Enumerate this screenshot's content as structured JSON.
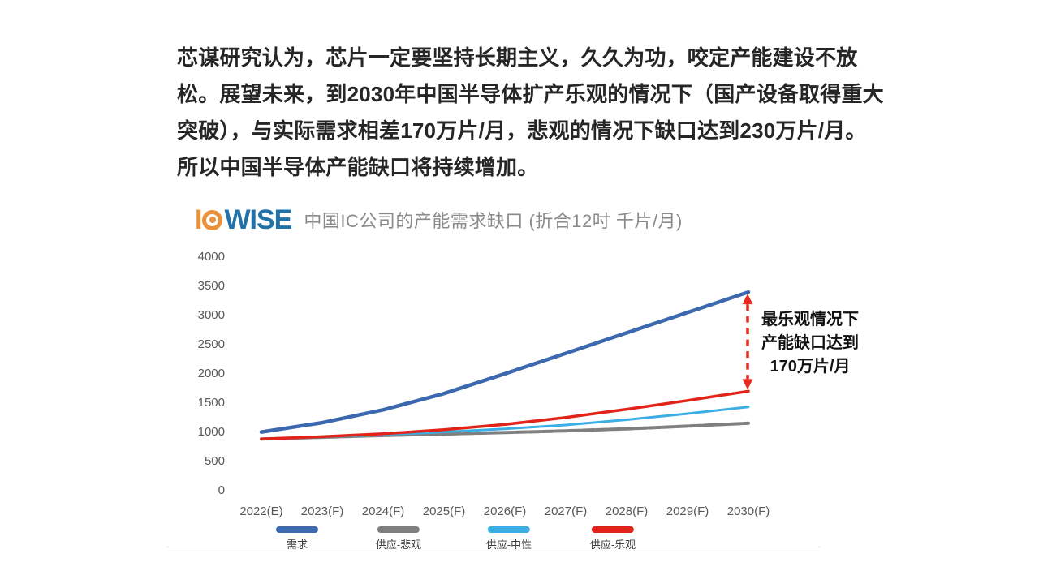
{
  "intro": {
    "lines": [
      "芯谋研究认为，芯片一定要坚持长期主义，久久为功，咬定产能建设不放",
      "松。展望未来，到2030年中国半导体扩产乐观的情况下（国产设备取得重大",
      "突破），与实际需求相差170万片/月，悲观的情况下缺口达到230万片/月。",
      "所以中国半导体产能缺口将持续增加。"
    ]
  },
  "logo": {
    "part1": "I",
    "part2": "WISE",
    "orange": "#E8923C",
    "blue": "#2272A8"
  },
  "chart_data": {
    "type": "line",
    "title": "中国IC公司的产能需求缺口 (折合12吋 千片/月)",
    "x_labels": [
      "2022(E)",
      "2023(F)",
      "2024(F)",
      "2025(F)",
      "2026(F)",
      "2027(F)",
      "2028(F)",
      "2029(F)",
      "2030(F)"
    ],
    "y_ticks": [
      0,
      500,
      1000,
      1500,
      2000,
      2500,
      3000,
      3500,
      4000
    ],
    "ylim": [
      0,
      4000
    ],
    "grid": false,
    "legend_position": "bottom",
    "series": [
      {
        "name": "需求",
        "color": "#3C68B0",
        "width": 4.5,
        "dash": "",
        "values": [
          1000,
          1160,
          1380,
          1660,
          2000,
          2350,
          2700,
          3050,
          3400
        ]
      },
      {
        "name": "供应-悲观",
        "color": "#7F7F7F",
        "width": 4,
        "dash": "14 2.5",
        "values": [
          880,
          910,
          940,
          965,
          990,
          1020,
          1055,
          1100,
          1150
        ]
      },
      {
        "name": "供应-中性",
        "color": "#3BAEE3",
        "width": 3,
        "dash": "",
        "values": [
          880,
          915,
          955,
          1000,
          1055,
          1120,
          1210,
          1315,
          1430
        ]
      },
      {
        "name": "供应-乐观",
        "color": "#E2231A",
        "width": 3.5,
        "dash": "",
        "values": [
          880,
          920,
          970,
          1040,
          1130,
          1250,
          1390,
          1540,
          1700
        ]
      }
    ],
    "annotation": {
      "lines": [
        "最乐观情况下",
        "产能缺口达到",
        "170万片/月"
      ],
      "arrow_color": "#E8291C",
      "gap_from_series": "需求",
      "gap_to_series": "供应-乐观",
      "gap_year": "2030(F)"
    }
  }
}
